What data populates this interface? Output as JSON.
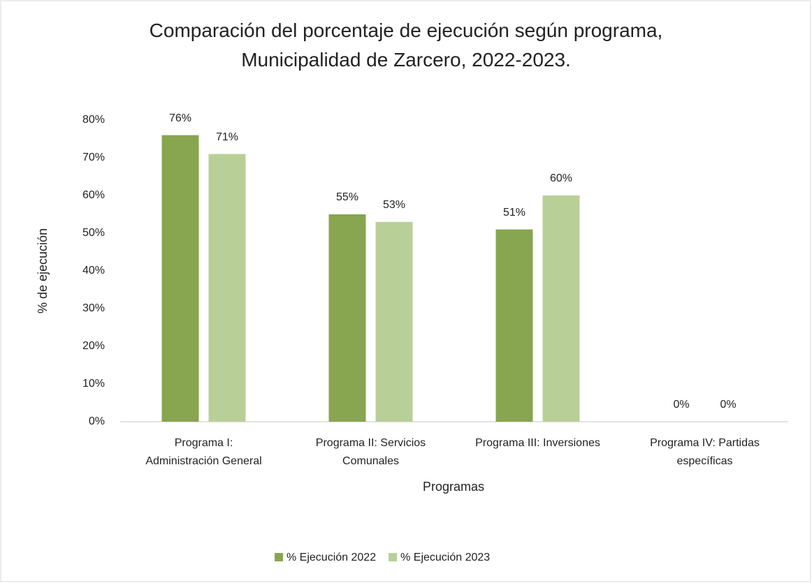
{
  "chart_data": {
    "type": "bar",
    "title": "Comparación del porcentaje de ejecución según programa, Municipalidad de Zarcero, 2022-2023.",
    "x_label": "Programas",
    "y_label": "% de ejecución",
    "categories": [
      "Programa I: Administración General",
      "Programa II: Servicios Comunales",
      "Programa III: Inversiones",
      "Programa IV: Partidas específicas"
    ],
    "series": [
      {
        "name": "% Ejecución 2022",
        "color": "#88a550",
        "values": [
          76,
          55,
          51,
          0
        ],
        "value_labels": [
          "76%",
          "55%",
          "51%",
          "0%"
        ]
      },
      {
        "name": "% Ejecución 2023",
        "color": "#b8d097",
        "values": [
          71,
          53,
          60,
          0
        ],
        "value_labels": [
          "71%",
          "53%",
          "60%",
          "0%"
        ]
      }
    ],
    "ylim": [
      0,
      80
    ],
    "yticks": [
      {
        "value": 0,
        "label": "0%"
      },
      {
        "value": 10,
        "label": "10%"
      },
      {
        "value": 20,
        "label": "20%"
      },
      {
        "value": 30,
        "label": "30%"
      },
      {
        "value": 40,
        "label": "40%"
      },
      {
        "value": 50,
        "label": "50%"
      },
      {
        "value": 60,
        "label": "60%"
      },
      {
        "value": 70,
        "label": "70%"
      },
      {
        "value": 80,
        "label": "80%"
      }
    ],
    "grid": false,
    "legend": "bottom"
  }
}
